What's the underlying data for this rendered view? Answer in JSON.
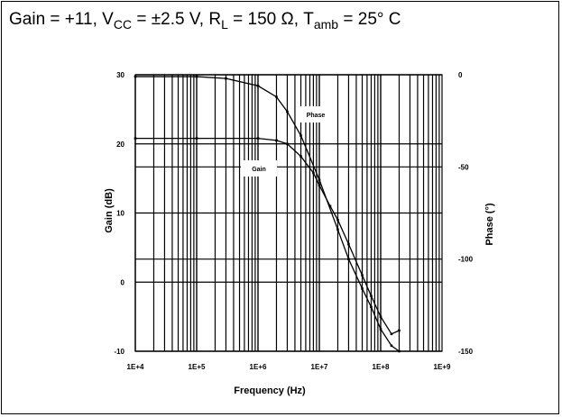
{
  "conditions": {
    "text_before_cc": "Gain = +11, V",
    "sub_cc": "CC",
    "text_before_l": " = ±2.5 V, R",
    "sub_l": "L",
    "text_before_amb": " = 150 Ω, T",
    "sub_amb": "amb",
    "text_end": " = 25° C"
  },
  "chart_data": {
    "type": "line",
    "title": "",
    "xlabel": "Frequency (Hz)",
    "ylabel": "Gain (dB)",
    "y2label": "Phase (°)",
    "xscale": "log",
    "xlim": [
      10000,
      1000000000
    ],
    "ylim": [
      -10,
      30
    ],
    "y2lim": [
      -150,
      0
    ],
    "grid": true,
    "x_tick_labels": [
      "1E+4",
      "1E+5",
      "1E+6",
      "1E+7",
      "1E+8",
      "1E+9"
    ],
    "y_tick_labels": [
      "30",
      "20",
      "10",
      "0",
      "-10"
    ],
    "y2_tick_labels": [
      "0",
      "-50",
      "-100",
      "-150"
    ],
    "series": [
      {
        "name": "Gain",
        "axis": "left",
        "x": [
          10000,
          100000,
          1000000,
          2000000,
          3000000,
          5000000,
          8000000,
          10000000,
          15000000,
          20000000,
          30000000,
          50000000,
          70000000,
          100000000,
          150000000,
          200000000
        ],
        "y": [
          20.8,
          20.8,
          20.8,
          20.5,
          20.0,
          18.2,
          15.8,
          14.0,
          11.0,
          9.0,
          5.5,
          1.0,
          -2.0,
          -5.0,
          -7.5,
          -7.0
        ]
      },
      {
        "name": "Phase",
        "axis": "right",
        "x": [
          10000,
          100000,
          300000,
          1000000,
          2000000,
          3000000,
          5000000,
          10000000,
          20000000,
          30000000,
          50000000,
          70000000,
          100000000,
          150000000,
          200000000
        ],
        "y": [
          -1,
          -1,
          -2,
          -6,
          -12,
          -20,
          -33,
          -57,
          -84,
          -100,
          -116,
          -126,
          -138,
          -147,
          -150
        ]
      }
    ],
    "annotations": [
      "Phase",
      "Gain"
    ]
  }
}
